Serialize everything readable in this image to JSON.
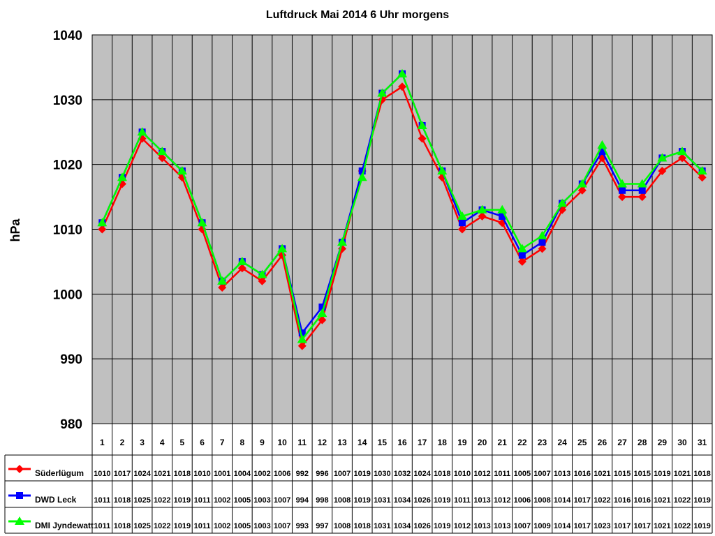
{
  "chart_data": {
    "type": "line",
    "title": "Luftdruck Mai 2014 6 Uhr morgens",
    "ylabel": "hPa",
    "xlabel": "",
    "ylim": [
      980,
      1040
    ],
    "yticks": [
      980,
      990,
      1000,
      1010,
      1020,
      1030,
      1040
    ],
    "grid": true,
    "legend": "data-table-left",
    "plot_background": "#c0c0c0",
    "categories": [
      "1",
      "2",
      "3",
      "4",
      "5",
      "6",
      "7",
      "8",
      "9",
      "10",
      "11",
      "12",
      "13",
      "14",
      "15",
      "16",
      "17",
      "18",
      "19",
      "20",
      "21",
      "22",
      "23",
      "24",
      "25",
      "26",
      "27",
      "28",
      "29",
      "30",
      "31"
    ],
    "series": [
      {
        "name": "Süderlügum",
        "color": "#ff0000",
        "marker": "diamond",
        "values": [
          1010,
          1017,
          1024,
          1021,
          1018,
          1010,
          1001,
          1004,
          1002,
          1006,
          992,
          996,
          1007,
          1019,
          1030,
          1032,
          1024,
          1018,
          1010,
          1012,
          1011,
          1005,
          1007,
          1013,
          1016,
          1021,
          1015,
          1015,
          1019,
          1021,
          1018
        ]
      },
      {
        "name": "DWD Leck",
        "color": "#0000ff",
        "marker": "square",
        "values": [
          1011,
          1018,
          1025,
          1022,
          1019,
          1011,
          1002,
          1005,
          1003,
          1007,
          994,
          998,
          1008,
          1019,
          1031,
          1034,
          1026,
          1019,
          1011,
          1013,
          1012,
          1006,
          1008,
          1014,
          1017,
          1022,
          1016,
          1016,
          1021,
          1022,
          1019
        ]
      },
      {
        "name": "DMI Jyndewatt",
        "color": "#00ff00",
        "marker": "triangle",
        "values": [
          1011,
          1018,
          1025,
          1022,
          1019,
          1011,
          1002,
          1005,
          1003,
          1007,
          993,
          997,
          1008,
          1018,
          1031,
          1034,
          1026,
          1019,
          1012,
          1013,
          1013,
          1007,
          1009,
          1014,
          1017,
          1023,
          1017,
          1017,
          1021,
          1022,
          1019
        ]
      }
    ]
  }
}
